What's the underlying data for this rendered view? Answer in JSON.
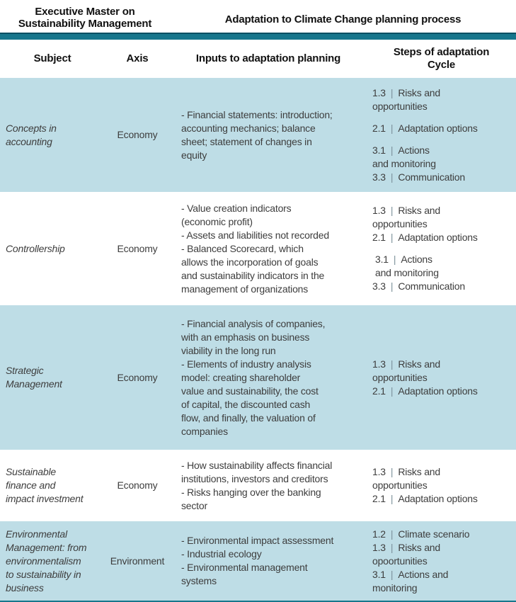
{
  "header": {
    "left_title": "Executive Master on\nSustainability Management",
    "right_title": "Adaptation to Climate Change planning process"
  },
  "columns": {
    "subject": "Subject",
    "axis": "Axis",
    "inputs": "Inputs to adaptation planning",
    "steps": "Steps of adaptation\nCycle"
  },
  "pipe_char": "|",
  "colors": {
    "teal_bar": "#17768c",
    "teal_bar_edge": "#0a4f63",
    "row_band": "#bedde6",
    "body_text": "#3d3d3d",
    "pipe": "#7d929b"
  },
  "rows": [
    {
      "subject": "Concepts in\naccounting",
      "axis": "Economy",
      "inputs": "- Financial statements: introduction;\naccounting mechanics; balance\nsheet; statement of changes in\nequity",
      "steps": [
        {
          "num": "1.3",
          "label": "Risks and\nopportunities"
        },
        {
          "num": "2.1",
          "label": "Adaptation options"
        },
        {
          "num": "3.1",
          "label": "Actions\nand monitoring"
        },
        {
          "num": "3.3",
          "label": "Communication"
        }
      ]
    },
    {
      "subject": "Controllership",
      "axis": "Economy",
      "inputs": "- Value creation indicators\n(economic profit)\n- Assets and liabilities not recorded\n- Balanced Scorecard, which\nallows the incorporation of goals\nand sustainability indicators in the\nmanagement of organizations",
      "steps": [
        {
          "num": "1.3",
          "label": "Risks and\nopportunities"
        },
        {
          "num": "2.1",
          "label": "Adaptation options"
        },
        {
          "num": "3.1",
          "label": "Actions\nand monitoring"
        },
        {
          "num": "3.3",
          "label": "Communication"
        }
      ]
    },
    {
      "subject": "Strategic\nManagement",
      "axis": "Economy",
      "inputs": "- Financial analysis of companies,\nwith an emphasis on business\nviability in the long run\n- Elements of industry analysis\nmodel: creating shareholder\nvalue and sustainability, the cost\nof capital, the discounted cash\nflow, and finally, the valuation of\ncompanies",
      "steps": [
        {
          "num": "1.3",
          "label": "Risks and\nopportunities"
        },
        {
          "num": "2.1",
          "label": "Adaptation options"
        }
      ]
    },
    {
      "subject": "Sustainable\nfinance and\nimpact investment",
      "axis": "Economy",
      "inputs": "- How sustainability affects financial\ninstitutions, investors and creditors\n- Risks hanging over the banking\nsector",
      "steps": [
        {
          "num": "1.3",
          "label": "Risks and\nopportunities"
        },
        {
          "num": "2.1",
          "label": "Adaptation options"
        }
      ]
    },
    {
      "subject": "Environmental\nManagement: from\nenvironmentalism\nto sustainability in\nbusiness",
      "axis": "Environment",
      "inputs": "- Environmental impact assessment\n- Industrial ecology\n- Environmental management\nsystems",
      "steps": [
        {
          "num": "1.2",
          "label": "Climate scenario"
        },
        {
          "num": "1.3",
          "label": "Risks and\nopoortunities"
        },
        {
          "num": "3.1",
          "label": "Actions and\nmonitoring"
        }
      ]
    }
  ]
}
